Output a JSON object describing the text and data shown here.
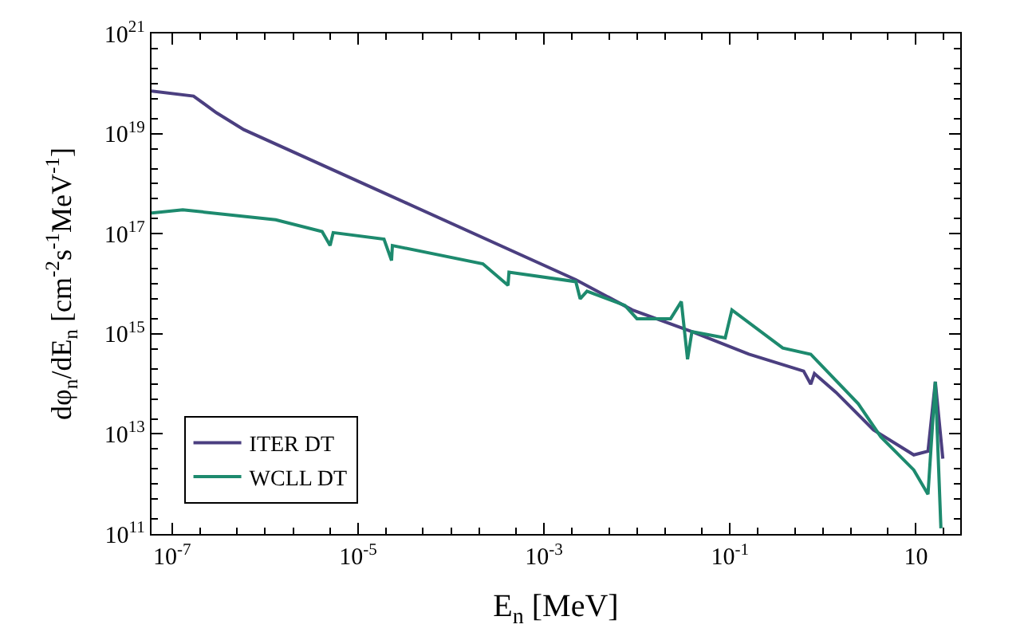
{
  "chart_data": {
    "type": "line",
    "xlabel": "E$_{n}$ [MeV]",
    "ylabel": "dφ$_{n}$/dE$_{n}$ [cm$^{-2}$s$^{-1}$MeV$^{-1}$]",
    "log": "xy",
    "legend": "bottom left",
    "line_style": "solid",
    "marker": "none",
    "xlim": [
      6e-08,
      30
    ],
    "ylim": [
      100000000000.0,
      1e+21
    ],
    "xticks": [
      {
        "value": 1e-07,
        "label": "10$^{-7}$"
      },
      {
        "value": 1e-05,
        "label": "10$^{-5}$"
      },
      {
        "value": 0.001,
        "label": "10$^{-3}$"
      },
      {
        "value": 0.1,
        "label": "10$^{-1}$"
      },
      10
    ],
    "yticks": [
      {
        "value": 100000000000.0,
        "label": "10$^{11}$"
      },
      {
        "value": 10000000000000.0,
        "label": "10$^{13}$"
      },
      {
        "value": 1000000000000000.0,
        "label": "10$^{15}$"
      },
      {
        "value": 1e+17,
        "label": "10$^{17}$"
      },
      {
        "value": 1e+19,
        "label": "10$^{19}$"
      },
      {
        "value": 1e+21,
        "label": "10$^{21}$"
      }
    ],
    "series": [
      {
        "name": "ITER DT",
        "color": "#4b3f80",
        "x": [
          6e-08,
          1.7e-07,
          3e-07,
          5.9e-07,
          2.1e-05,
          0.0022,
          0.0089,
          0.039,
          0.16,
          0.62,
          0.74,
          0.81,
          1.38,
          3.5,
          9.5,
          13.5,
          16.2,
          19.5
        ],
        "values": [
          7.1e+19,
          5.6e+19,
          2.6e+19,
          1.2e+19,
          6e+17,
          1.2e+16,
          3000000000000000.0,
          1100000000000000.0,
          390000000000000.0,
          180000000000000.0,
          98000000000000.0,
          160000000000000.0,
          68000000000000.0,
          12000000000000.0,
          3800000000000.0,
          4500000000000.0,
          110000000000000.0,
          3200000000000.0
        ]
      },
      {
        "name": "WCLL DT",
        "color": "#1d8a6e",
        "x": [
          6e-08,
          1.3e-07,
          1.3e-06,
          4.1e-06,
          5e-06,
          5.4e-06,
          1.9e-05,
          2.29e-05,
          2.34e-05,
          0.00022,
          0.00041,
          0.00042,
          0.0022,
          0.00245,
          0.0029,
          0.0074,
          0.01,
          0.023,
          0.03,
          0.035,
          0.039,
          0.089,
          0.105,
          0.37,
          0.74,
          2.4,
          4.2,
          9.5,
          13.5,
          16.2,
          18.6
        ],
        "values": [
          2.6e+17,
          3e+17,
          1.9e+17,
          1.1e+17,
          5.8e+16,
          1.05e+17,
          7.8e+16,
          2.9e+16,
          5.8e+16,
          2.5e+16,
          9300000000000000.0,
          1.7e+16,
          1.1e+16,
          5000000000000000.0,
          7100000000000000.0,
          3700000000000000.0,
          2000000000000000.0,
          2000000000000000.0,
          4400000000000000.0,
          310000000000000.0,
          1100000000000000.0,
          830000000000000.0,
          3000000000000000.0,
          520000000000000.0,
          390000000000000.0,
          40000000000000.0,
          8700000000000.0,
          1900000000000.0,
          620000000000.0,
          110000000000000.0,
          130000000000.0
        ]
      }
    ]
  }
}
